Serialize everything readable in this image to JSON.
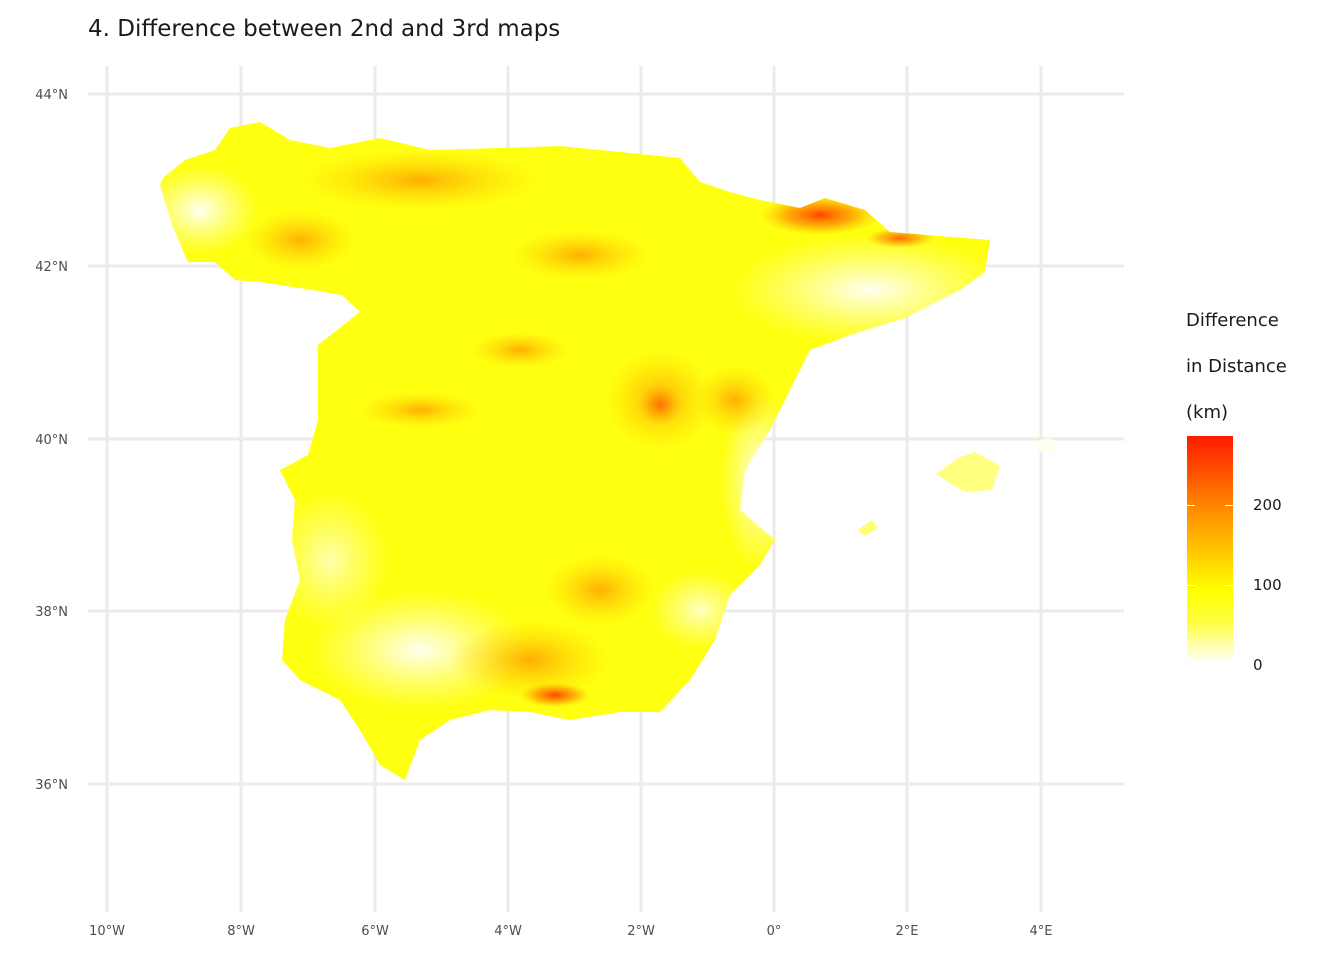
{
  "title": "4. Difference between 2nd and 3rd maps",
  "axes": {
    "x_ticks": [
      "10°W",
      "8°W",
      "6°W",
      "4°W",
      "2°W",
      "0°",
      "2°E",
      "4°E"
    ],
    "y_ticks": [
      "44°N",
      "42°N",
      "40°N",
      "38°N",
      "36°N"
    ],
    "x_range_deg": [
      -10.1,
      5.3
    ],
    "y_range_deg": [
      34.7,
      44.3
    ],
    "grid": true
  },
  "legend": {
    "title_lines": [
      "Difference",
      "in Distance",
      "(km)"
    ],
    "labels": [
      "200",
      "100",
      "0"
    ],
    "values": [
      200,
      100,
      0
    ],
    "range": [
      0,
      290
    ],
    "colors": [
      "#ffffff",
      "#ffff00",
      "#ffa500",
      "#ff1a00"
    ]
  },
  "colors": {
    "grid": "#ebebeb",
    "low": "#ffffff",
    "mid": "#ffff00",
    "high": "#ff1a00",
    "text": "#1a1a1a",
    "axis_text": "#4d4d4d"
  }
}
